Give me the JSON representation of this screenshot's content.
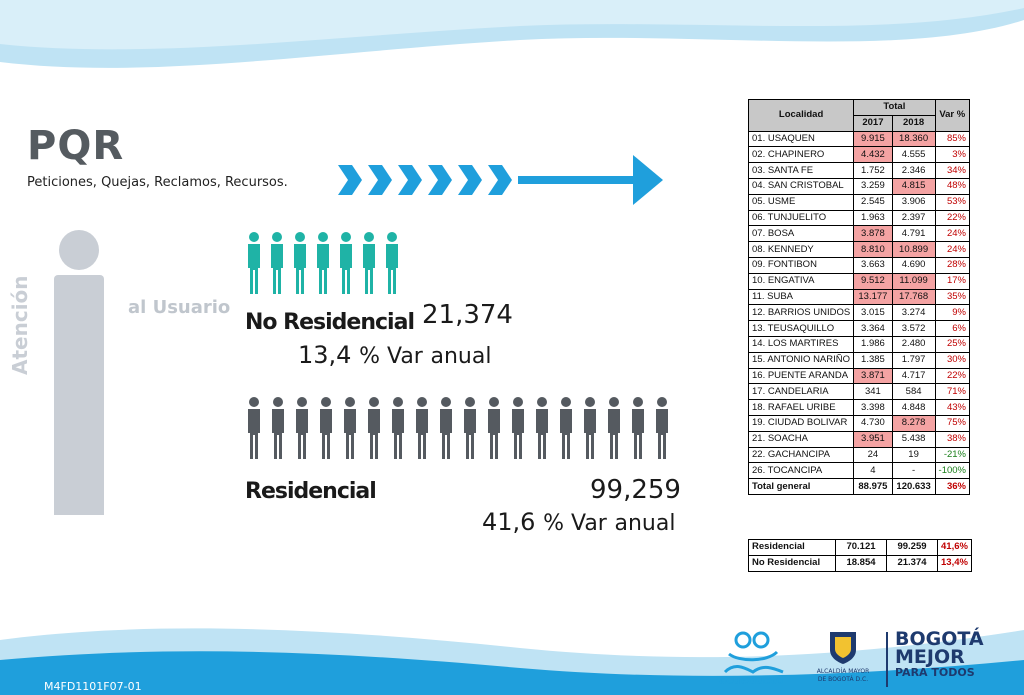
{
  "title": "PQR",
  "subtitle": "Peticiones, Quejas, Reclamos, Recursos.",
  "side_label_1": "Atención",
  "side_label_2": "al Usuario",
  "no_residencial": {
    "label": "No Residencial",
    "total": "21,374",
    "var_num": "13,4",
    "var_pct": "% Var",
    "var_suffix": "anual"
  },
  "residencial": {
    "label": "Residencial",
    "total": "99,259",
    "var_num": "41,6",
    "var_pct": "% Var",
    "var_suffix": "anual"
  },
  "colors": {
    "teal": "#1fb3a6",
    "gray_dark": "#555a60",
    "light_gray": "#c9ced5",
    "blue": "#1f9fdc",
    "red_cell": "#f4a3a3"
  },
  "table": {
    "headers": {
      "localidad": "Localidad",
      "total": "Total",
      "y2017": "2017",
      "y2018": "2018",
      "var": "Var %"
    },
    "rows": [
      {
        "name": "01. USAQUEN",
        "v2017": "9.915",
        "v2018": "18.360",
        "var": "85%"
      },
      {
        "name": "02. CHAPINERO",
        "v2017": "4.432",
        "v2018": "4.555",
        "var": "3%"
      },
      {
        "name": "03. SANTA FE",
        "v2017": "1.752",
        "v2018": "2.346",
        "var": "34%"
      },
      {
        "name": "04. SAN CRISTOBAL",
        "v2017": "3.259",
        "v2018": "4.815",
        "var": "48%"
      },
      {
        "name": "05. USME",
        "v2017": "2.545",
        "v2018": "3.906",
        "var": "53%"
      },
      {
        "name": "06. TUNJUELITO",
        "v2017": "1.963",
        "v2018": "2.397",
        "var": "22%"
      },
      {
        "name": "07. BOSA",
        "v2017": "3.878",
        "v2018": "4.791",
        "var": "24%"
      },
      {
        "name": "08. KENNEDY",
        "v2017": "8.810",
        "v2018": "10.899",
        "var": "24%"
      },
      {
        "name": "09. FONTIBON",
        "v2017": "3.663",
        "v2018": "4.690",
        "var": "28%"
      },
      {
        "name": "10. ENGATIVA",
        "v2017": "9.512",
        "v2018": "11.099",
        "var": "17%"
      },
      {
        "name": "11. SUBA",
        "v2017": "13.177",
        "v2018": "17.768",
        "var": "35%"
      },
      {
        "name": "12. BARRIOS UNIDOS",
        "v2017": "3.015",
        "v2018": "3.274",
        "var": "9%"
      },
      {
        "name": "13. TEUSAQUILLO",
        "v2017": "3.364",
        "v2018": "3.572",
        "var": "6%"
      },
      {
        "name": "14. LOS MARTIRES",
        "v2017": "1.986",
        "v2018": "2.480",
        "var": "25%"
      },
      {
        "name": "15. ANTONIO NARIÑO",
        "v2017": "1.385",
        "v2018": "1.797",
        "var": "30%"
      },
      {
        "name": "16. PUENTE ARANDA",
        "v2017": "3.871",
        "v2018": "4.717",
        "var": "22%"
      },
      {
        "name": "17. CANDELARIA",
        "v2017": "341",
        "v2018": "584",
        "var": "71%"
      },
      {
        "name": "18. RAFAEL URIBE",
        "v2017": "3.398",
        "v2018": "4.848",
        "var": "43%"
      },
      {
        "name": "19. CIUDAD BOLIVAR",
        "v2017": "4.730",
        "v2018": "8.278",
        "var": "75%"
      },
      {
        "name": "21. SOACHA",
        "v2017": "3.951",
        "v2018": "5.438",
        "var": "38%"
      },
      {
        "name": "22. GACHANCIPA",
        "v2017": "24",
        "v2018": "19",
        "var": "-21%"
      },
      {
        "name": "26. TOCANCIPA",
        "v2017": "4",
        "v2018": "-",
        "var": "-100%"
      }
    ],
    "total": {
      "name": "Total general",
      "v2017": "88.975",
      "v2018": "120.633",
      "var": "36%"
    },
    "summary": [
      {
        "name": "Residencial",
        "v2017": "70.121",
        "v2018": "99.259",
        "var": "41,6%"
      },
      {
        "name": "No Residencial",
        "v2017": "18.854",
        "v2018": "21.374",
        "var": "13,4%"
      }
    ]
  },
  "logos": {
    "acueducto": "acueducto",
    "alcaldia_line1": "ALCALDÍA MAYOR",
    "alcaldia_line2": "DE BOGOTÁ D.C.",
    "bogota_1": "BOGOTÁ",
    "bogota_2": "MEJOR",
    "bogota_3": "PARA TODOS"
  },
  "footer_code": "M4FD1101F07-01"
}
